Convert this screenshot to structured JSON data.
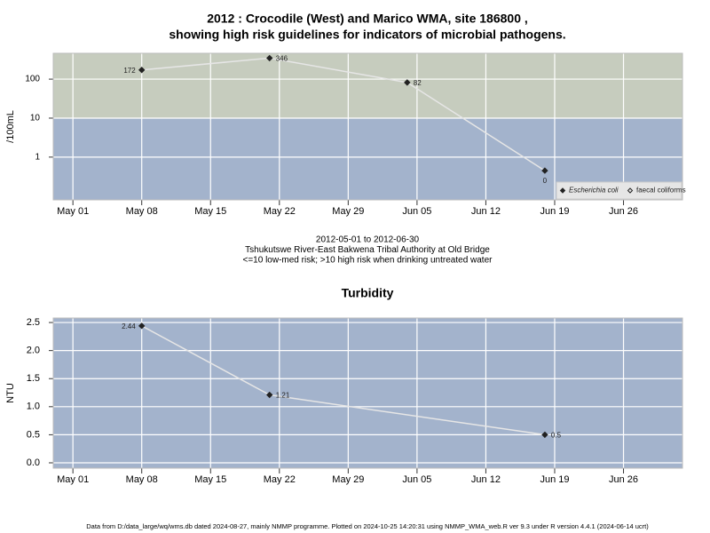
{
  "chart_data": [
    {
      "type": "line",
      "title": [
        "2012 : Crocodile (West) and Marico WMA, site 186800 ,",
        "showing high risk guidelines for indicators of microbial pathogens."
      ],
      "ylabel": "/100mL",
      "log_scale": true,
      "x": [
        "2012-05-08",
        "2012-05-21",
        "2012-06-04",
        "2012-06-18"
      ],
      "xlim": [
        "2012-04-29",
        "2012-07-02"
      ],
      "xticks": [
        {
          "value": "2012-05-01",
          "label": "May 01"
        },
        {
          "value": "2012-05-08",
          "label": "May 08"
        },
        {
          "value": "2012-05-15",
          "label": "May 15"
        },
        {
          "value": "2012-05-22",
          "label": "May 22"
        },
        {
          "value": "2012-05-29",
          "label": "May 29"
        },
        {
          "value": "2012-06-05",
          "label": "Jun 05"
        },
        {
          "value": "2012-06-12",
          "label": "Jun 12"
        },
        {
          "value": "2012-06-19",
          "label": "Jun 19"
        },
        {
          "value": "2012-06-26",
          "label": "Jun 26"
        }
      ],
      "ylim": [
        0.08,
        460
      ],
      "yticks": [
        1,
        10,
        100
      ],
      "grid": true,
      "background": "#a3b3cc",
      "threshold": 10,
      "high_risk_color": "#c6ccbe",
      "line_color": "#e6e6e6",
      "series": [
        {
          "name": "Escherichia coli",
          "color": "#222222",
          "marker": "filled",
          "values": [
            172,
            346,
            82,
            0.45
          ],
          "value_labels": [
            "172",
            "346",
            "82",
            "0"
          ]
        },
        {
          "name": "faecal coliforms",
          "color": "#222222",
          "marker": "open",
          "values": [
            null,
            null,
            null,
            null
          ]
        }
      ],
      "legend": "lower right",
      "caption": [
        "2012-05-01 to 2012-06-30",
        "Tshukutswe River-East Bakwena Tribal Authority at Old Bridge",
        "<=10 low-med risk; >10 high risk when drinking untreated water"
      ]
    },
    {
      "type": "line",
      "title": "Turbidity",
      "ylabel": "NTU",
      "log_scale": false,
      "x": [
        "2012-05-08",
        "2012-05-21",
        "2012-06-18"
      ],
      "xlim": [
        "2012-04-29",
        "2012-07-02"
      ],
      "xticks": [
        {
          "value": "2012-05-01",
          "label": "May 01"
        },
        {
          "value": "2012-05-08",
          "label": "May 08"
        },
        {
          "value": "2012-05-15",
          "label": "May 15"
        },
        {
          "value": "2012-05-22",
          "label": "May 22"
        },
        {
          "value": "2012-05-29",
          "label": "May 29"
        },
        {
          "value": "2012-06-05",
          "label": "Jun 05"
        },
        {
          "value": "2012-06-12",
          "label": "Jun 12"
        },
        {
          "value": "2012-06-19",
          "label": "Jun 19"
        },
        {
          "value": "2012-06-26",
          "label": "Jun 26"
        }
      ],
      "ylim": [
        -0.095,
        2.58
      ],
      "yticks": [
        {
          "value": 0,
          "label": "0.0"
        },
        0.5,
        {
          "value": 1,
          "label": "1.0"
        },
        1.5,
        {
          "value": 2,
          "label": "2.0"
        },
        2.5
      ],
      "grid": true,
      "background": "#a3b3cc",
      "line_color": "#e6e6e6",
      "series": [
        {
          "name": "Turbidity",
          "color": "#222222",
          "marker": "filled",
          "values": [
            2.44,
            1.21,
            0.5
          ]
        }
      ]
    }
  ],
  "footer": "Data from D:/data_large/wq/wms.db dated 2024-08-27, mainly NMMP programme. Plotted on 2024-10-25 14:20:31 using NMMP_WMA_web.R ver 9.3 under R version 4.4.1 (2024-06-14 ucrt)"
}
